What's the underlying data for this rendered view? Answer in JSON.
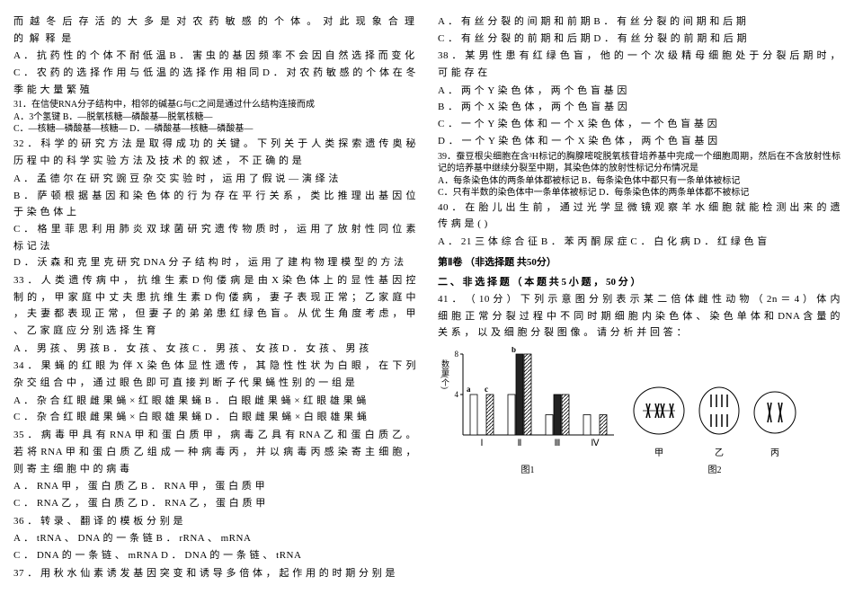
{
  "leftColumn": {
    "q30_tail": "而 越 冬 后 存 活 的 大 多 是 对 农 药 敏 感 的 个 体 。 对 此 现 象 合 理 的 解 释 是",
    "q30_opts": "A ． 抗 药 性 的 个 体 不 耐 低 温         B ． 害 虫 的 基 因 频 率 不 会 因 自 然 选 择 而 变 化\nC ． 农 药 的 选 择 作 用 与 低 温 的 选 择 作 用 相 同     D ． 对 农 药 敏 感 的 个 体 在 冬 季 能 大 量 繁 殖",
    "q31_stem": "31．在信使RNA分子结构中，相邻的碱基G与C之间是通过什么结构连接而成",
    "q31_opts": "A．3个氢键            B．—脱氧核糖—磷酸基—脱氧核糖—\nC．—核糖—磷酸基—核糖—      D．—磷酸基—核糖—磷酸基—",
    "q32": "32 ． 科 学 的 研 究 方 法 是 取 得 成 功 的 关 键 。 下 列 关 于 人 类 探 索 遗 传 奥 秘 历 程 中 的 科 学 实 验 方 法 及 技 术 的 叙 述 ， 不 正 确 的 是",
    "q32_opts": "A ． 孟 德 尔 在 研 究 豌 豆 杂 交 实 验 时 ， 运 用 了 假 说 — 演 绎 法\nB ． 萨 顿 根 据 基 因 和 染 色 体 的 行 为 存 在 平 行 关 系 ， 类 比 推 理 出 基 因 位 于 染 色 体 上\nC ． 格 里 菲 思 利 用 肺 炎 双 球 菌 研 究 遗 传 物 质 时 ， 运 用 了 放 射 性 同 位 素 标 记 法\nD ． 沃 森 和 克 里 克 研 究 DNA 分 子 结 构 时 ， 运 用 了 建 构 物 理 模 型 的 方 法",
    "q33": "33 ． 人 类 遗 传 病 中 ， 抗 维 生 素 D 佝 偻 病 是 由 X 染 色 体 上 的 显 性 基 因 控 制 的 ， 甲 家 庭 中 丈 夫 患 抗 维 生 素 D 佝 偻 病 ， 妻 子 表 现 正 常 ； 乙 家 庭 中 ， 夫 妻 都 表 现 正 常 ， 但 妻 子 的 弟 弟 患 红 绿 色 盲 。 从 优 生 角 度 考 虑 ， 甲 、 乙 家 庭 应 分 别 选 择 生 育",
    "q33_opts": "A ． 男 孩 、 男 孩       B ． 女 孩 、 女 孩       C ． 男 孩 、 女 孩       D ． 女 孩 、 男 孩",
    "q34": "34 ． 果 蝇 的 红 眼 为 伴 X 染 色 体 显 性 遗 传 ， 其 隐 性 性 状 为 白 眼 ， 在 下 列 杂 交 组 合 中 ， 通 过 眼 色 即 可 直 接 判 断 子 代 果 蝇 性 别 的 一 组 是",
    "q34_opts": "A ． 杂 合 红 眼 雌 果 蝇 × 红 眼 雄 果 蝇             B ． 白 眼 雌 果 蝇 × 红 眼 雄 果 蝇\nC ． 杂 合 红 眼 雌 果 蝇 × 白 眼 雄 果 蝇             D ． 白 眼 雌 果 蝇 × 白 眼 雄 果 蝇",
    "q35": "35 ． 病 毒 甲 具 有 RNA 甲 和 蛋 白 质 甲 ， 病 毒 乙 具 有 RNA 乙 和 蛋 白 质 乙 。 若 将 RNA 甲 和 蛋 白 质 乙 组 成 一 种 病 毒 丙 ， 并 以 病 毒 丙 感 染 寄 主 细 胞 ， 则 寄 主 细 胞 中 的 病 毒",
    "q35_opts": "A ． RNA 甲 ， 蛋 白 质 乙           B ． RNA 甲 ， 蛋 白 质 甲\nC ． RNA 乙 ， 蛋 白 质 乙           D ． RNA 乙 ， 蛋 白 质 甲"
  },
  "rightColumn": {
    "q36": "36 ． 转 录 、 翻 译 的 模 板 分 别 是",
    "q36_opts": "A ． tRNA 、 DNA 的 一 条 链        B ． rRNA 、 mRNA\nC ． DNA 的 一 条 链 、 mRNA             D ． DNA 的 一 条 链 、 tRNA",
    "q37": "37 ． 用 秋 水 仙 素 诱 发 基 因 突 变 和 诱 导 多 倍 体 ， 起 作 用 的 时 期 分 别 是",
    "q37_opts": "A ． 有 丝 分 裂 的 间 期 和 前 期                 B ． 有 丝 分 裂 的 间 期 和 后 期\nC ． 有 丝 分 裂 的 前 期 和 后 期                 D ． 有 丝 分 裂 的 前 期 和 后 期",
    "q38": "38 ． 某 男 性 患 有 红 绿 色 盲 ， 他 的 一 个 次 级 精 母 细 胞 处 于 分 裂 后 期 时 ， 可 能 存 在",
    "q38_opts": "A ． 两 个 Y 染 色 体 ， 两 个 色 盲 基 因\nB ． 两 个 X 染 色 体 ， 两 个 色 盲 基 因\nC ． 一 个 Y 染 色 体 和 一 个 X 染 色 体 ， 一 个 色 盲 基 因\nD ． 一 个 Y 染 色 体 和 一 个 X 染 色 体 ， 两 个 色 盲 基 因",
    "q39": "39．蚕豆根尖细胞在含³H标记的胸腺嘧啶脱氧核苷培养基中完成一个细胞周期，然后在不含放射性标记的培养基中继续分裂至中期，其染色体的放射性标记分布情况是",
    "q39_opts": "A．每条染色体的两条单体都被标记   B．每条染色体中都只有一条单体被标记\nC．只有半数的染色体中一条单体被标记 D．每条染色体的两条单体都不被标记",
    "q40": "40 ． 在 胎 儿 出 生 前 ， 通 过 光 学 显 微 镜 观 察 羊 水 细 胞 就 能 检 测 出 来 的 遗 传 病 是   (     )",
    "q40_opts": "A ． 21 三 体 综 合 征       B ． 苯 丙 酮 尿 症       C ． 白 化 病         D ． 红 绿 色 盲",
    "section2_title": "第Ⅱ卷 （非选择题  共50分）",
    "section2_sub": "二 、 非 选 择 题 （ 本 题 共 5 小 题 ，     50 分 ）",
    "q41": "41 ． （ 10 分 ） 下 列 示 意 图 分 别 表 示 某 二 倍 体 雌 性 动 物 （ 2n ＝ 4 ） 体 内 细 胞 正 常 分 裂 过 程 中 不 同 时 期 细 胞 内 染 色 体 、 染 色 单 体 和 DNA 含 量 的 关 系 ， 以 及 细 胞 分 裂 图 像 。 请 分 析 并 回 答 ：",
    "chart": {
      "y_label": "数量(个)",
      "y_ticks": [
        4,
        8
      ],
      "categories": [
        "Ⅰ",
        "Ⅱ",
        "Ⅲ",
        "Ⅳ"
      ],
      "legend": [
        "a",
        "b",
        "c"
      ],
      "series": {
        "I": {
          "a": 4,
          "b": 0,
          "c": 4
        },
        "II": {
          "a": 4,
          "b": 8,
          "c": 8
        },
        "III": {
          "a": 2,
          "b": 4,
          "c": 4
        },
        "IV": {
          "a": 2,
          "b": 0,
          "c": 2
        }
      },
      "bar_colors": {
        "a": "#ffffff",
        "b": "#222222",
        "c_fill": "#ffffff"
      },
      "bar_border": "#000000",
      "c_hatch": "diag",
      "fig1_label": "图1",
      "fig2_label": "图2",
      "cell_labels": [
        "甲",
        "乙",
        "丙"
      ]
    }
  }
}
